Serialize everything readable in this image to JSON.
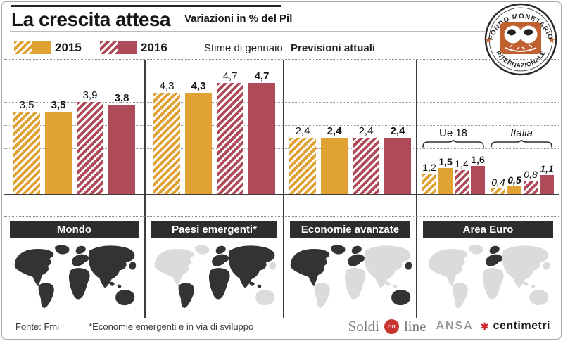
{
  "header": {
    "title": "La crescita attesa",
    "subtitle": "Variazioni in % del Pil",
    "legend": {
      "label_2015": "2015",
      "label_2016": "2016",
      "hatched_meaning": "Stime di gennaio",
      "solid_meaning": "Previsioni attuali"
    },
    "logo_top": "FONDO MONETARIO",
    "logo_bottom": "INTERNAZIONALE"
  },
  "colors": {
    "gold": "#E0A135",
    "crimson": "#AF4B59",
    "header_bar": "#2D2D2D",
    "map_dark": "#333333",
    "map_light": "#DBDBDB",
    "logo_orange": "#C06030",
    "brand_red": "#C5342F"
  },
  "chart_data": {
    "type": "bar",
    "ylabel": "Variazioni in % del Pil",
    "ylim": [
      0,
      5
    ],
    "grid": true,
    "series": [
      "2015 - Stime di gennaio (tratteggio)",
      "2015 - Previsioni attuali (pieno)",
      "2016 - Stime di gennaio (tratteggio)",
      "2016 - Previsioni attuali (pieno)"
    ],
    "groups": [
      {
        "name": "Mondo",
        "values": [
          3.5,
          3.5,
          3.9,
          3.8
        ],
        "labels": [
          "3,5",
          "3,5",
          "3,9",
          "3,8"
        ]
      },
      {
        "name": "Paesi emergenti*",
        "values": [
          4.3,
          4.3,
          4.7,
          4.7
        ],
        "labels": [
          "4,3",
          "4,3",
          "4,7",
          "4,7"
        ]
      },
      {
        "name": "Economie avanzate",
        "values": [
          2.4,
          2.4,
          2.4,
          2.4
        ],
        "labels": [
          "2,4",
          "2,4",
          "2,4",
          "2,4"
        ]
      },
      {
        "name": "Area Euro",
        "subgroups": [
          {
            "name": "Ue 18",
            "italic": false,
            "values": [
              1.2,
              1.5,
              1.4,
              1.6
            ],
            "labels": [
              "1,2",
              "1,5",
              "1,4",
              "1,6"
            ]
          },
          {
            "name": "Italia",
            "italic": true,
            "values": [
              0.4,
              0.5,
              0.8,
              1.1
            ],
            "labels": [
              "0,4",
              "0,5",
              "0,8",
              "1,1"
            ]
          }
        ]
      }
    ]
  },
  "footer": {
    "source": "Fonte: Fmi",
    "note": "*Economie emergenti e in via di sviluppo",
    "soldionline": {
      "soldi": "Soldi",
      "bubble": "on",
      "line": "line"
    },
    "ansa": "ANSA",
    "centimetri": "centimetri"
  }
}
